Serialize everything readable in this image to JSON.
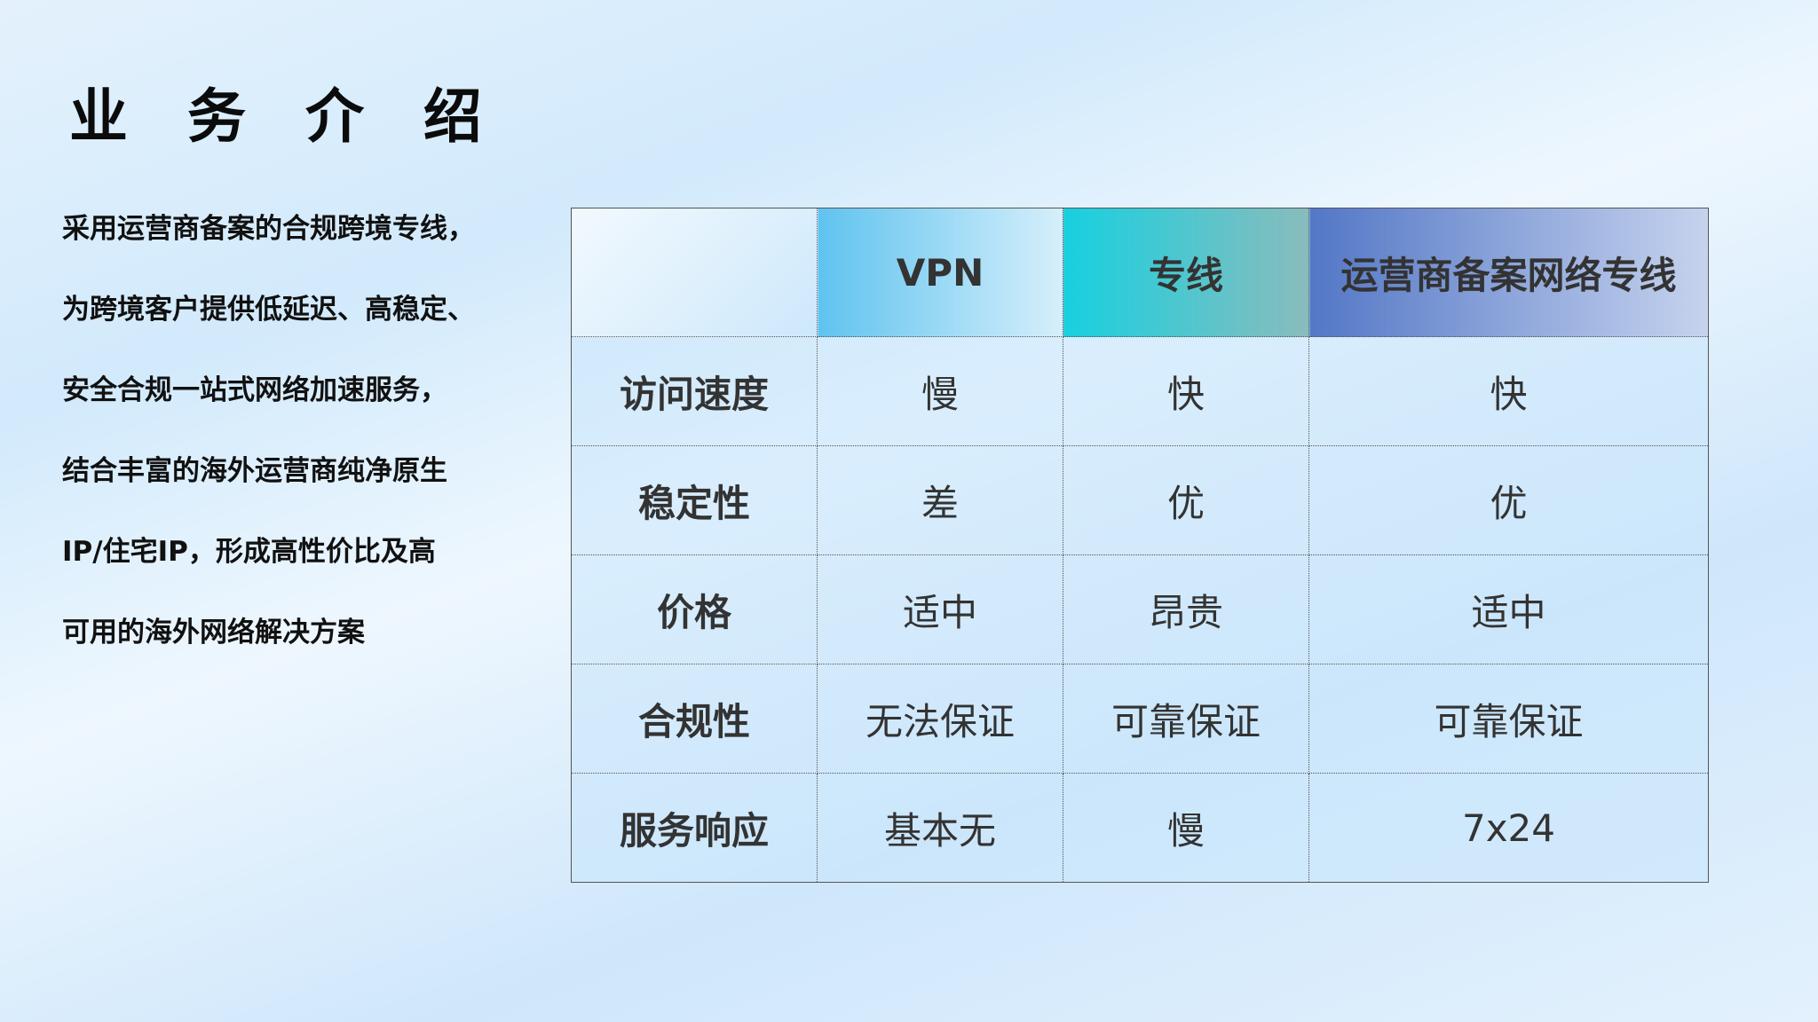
{
  "title": "业 务 介 绍",
  "description": [
    "采用运营商备案的合规跨境专线，",
    "为跨境客户提供低延迟、高稳定、",
    "安全合规一站式网络加速服务，",
    "结合丰富的海外运营商纯净原生",
    "IP/住宅IP，形成高性价比及高",
    "可用的海外网络解决方案"
  ],
  "table": {
    "headers": [
      "",
      "VPN",
      "专线",
      "运营商备案网络专线"
    ],
    "rows": [
      [
        "访问速度",
        "慢",
        "快",
        "快"
      ],
      [
        "稳定性",
        "差",
        "优",
        "优"
      ],
      [
        "价格",
        "适中",
        "昂贵",
        "适中"
      ],
      [
        "合规性",
        "无法保证",
        "可靠保证",
        "可靠保证"
      ],
      [
        "服务响应",
        "基本无",
        "慢",
        "7x24"
      ]
    ]
  },
  "colors": {
    "vpn_header": "#5fc3ef",
    "line_header": "#17d0e0",
    "isp_header": "#5377c6"
  }
}
